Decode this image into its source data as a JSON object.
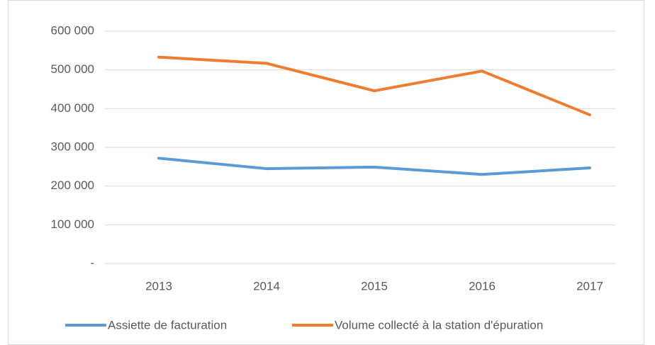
{
  "chart_data": {
    "type": "line",
    "categories": [
      "2013",
      "2014",
      "2015",
      "2016",
      "2017"
    ],
    "series": [
      {
        "name": "Assiette de facturation",
        "color": "#5b9bd5",
        "values": [
          272000,
          245000,
          249000,
          230000,
          247000
        ]
      },
      {
        "name": "Volume collecté à la station d'épuration",
        "color": "#ed7d31",
        "values": [
          533000,
          517000,
          446000,
          497000,
          384000
        ]
      }
    ],
    "ylim": [
      0,
      600000
    ],
    "yticks": [
      {
        "value": 0,
        "label": "-"
      },
      {
        "value": 100000,
        "label": "100 000"
      },
      {
        "value": 200000,
        "label": "200 000"
      },
      {
        "value": 300000,
        "label": "300 000"
      },
      {
        "value": 400000,
        "label": "400 000"
      },
      {
        "value": 500000,
        "label": "500 000"
      },
      {
        "value": 600000,
        "label": "600 000"
      }
    ],
    "grid": true,
    "legend": "bottom"
  }
}
